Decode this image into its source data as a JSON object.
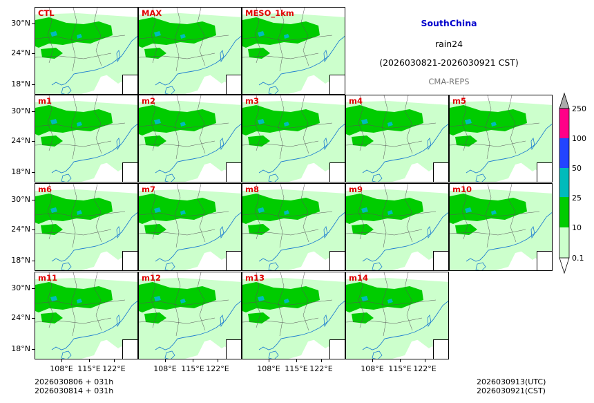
{
  "header": {
    "region": "SouthChina",
    "variable": "rain24",
    "period": "(2026030821-2026030921 CST)",
    "system": "CMA-REPS"
  },
  "panels": [
    {
      "label": "CTL"
    },
    {
      "label": "MAX"
    },
    {
      "label": "MESO_1km"
    },
    {
      "label": "m1"
    },
    {
      "label": "m2"
    },
    {
      "label": "m3"
    },
    {
      "label": "m4"
    },
    {
      "label": "m5"
    },
    {
      "label": "m6"
    },
    {
      "label": "m7"
    },
    {
      "label": "m8"
    },
    {
      "label": "m9"
    },
    {
      "label": "m10"
    },
    {
      "label": "m11"
    },
    {
      "label": "m12"
    },
    {
      "label": "m13"
    },
    {
      "label": "m14"
    }
  ],
  "axes": {
    "lat_labels": [
      "30°N",
      "24°N",
      "18°N"
    ],
    "lon_labels": [
      "108°E",
      "115°E",
      "122°E"
    ]
  },
  "colorbar": {
    "levels": [
      "0.1",
      "10",
      "25",
      "50",
      "100",
      "250"
    ],
    "colors": [
      "#ccffcc",
      "#00cc00",
      "#00bbbb",
      "#2244ff",
      "#ff0088",
      "#aaaaaa"
    ]
  },
  "footer": {
    "init_utc": "2026030806  +  031h",
    "init_cst": "2026030814  +  031h",
    "valid_utc": "2026030913(UTC)",
    "valid_cst": "2026030921(CST)"
  },
  "colors": {
    "light_rain": "#ccffcc",
    "moderate_rain": "#00cc00",
    "heavy_rain": "#00bbbb",
    "coast": "#1e7fd0",
    "border": "#555555",
    "label": "#e00000"
  }
}
